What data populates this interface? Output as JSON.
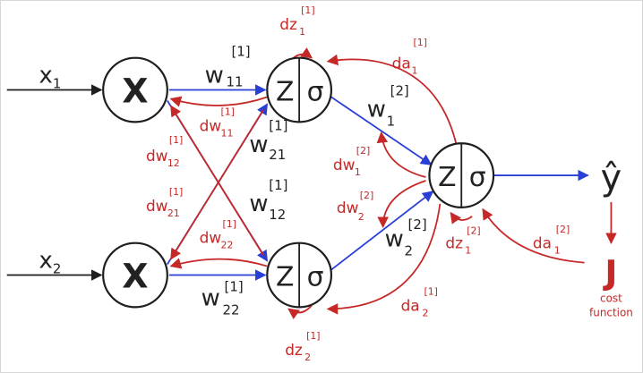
{
  "colors": {
    "forward": "#2a3fd6",
    "backward": "#c62828",
    "ink": "#222222"
  },
  "inputs": {
    "x1": "x",
    "x1_sub": "1",
    "x2": "x",
    "x2_sub": "2"
  },
  "nodes": {
    "multiply_symbol": "X",
    "z": "Z",
    "sigma": "σ"
  },
  "weights": {
    "w11": {
      "base": "w",
      "sup": "[1]",
      "sub": "11"
    },
    "w21": {
      "base": "w",
      "sup": "[1]",
      "sub": "21"
    },
    "w12": {
      "base": "w",
      "sup": "[1]",
      "sub": "12"
    },
    "w22": {
      "base": "w",
      "sup": "[1]",
      "sub": "22"
    },
    "w1_2": {
      "base": "w",
      "sup": "[2]",
      "sub": "1"
    },
    "w2_2": {
      "base": "w",
      "sup": "[2]",
      "sub": "2"
    }
  },
  "gradients": {
    "dw11": {
      "base": "dw",
      "sup": "[1]",
      "sub": "11"
    },
    "dw12": {
      "base": "dw",
      "sup": "[1]",
      "sub": "12"
    },
    "dw21": {
      "base": "dw",
      "sup": "[1]",
      "sub": "21"
    },
    "dw22": {
      "base": "dw",
      "sup": "[1]",
      "sub": "22"
    },
    "dw1_2": {
      "base": "dw",
      "sup": "[2]",
      "sub": "1"
    },
    "dw2_2": {
      "base": "dw",
      "sup": "[2]",
      "sub": "2"
    },
    "dz1_1": {
      "base": "dz",
      "sup": "[1]",
      "sub": "1"
    },
    "dz2_1": {
      "base": "dz",
      "sup": "[1]",
      "sub": "2"
    },
    "dz1_2": {
      "base": "dz",
      "sup": "[2]",
      "sub": "1"
    },
    "da1_1": {
      "base": "da",
      "sup": "[1]",
      "sub": "1"
    },
    "da2_1": {
      "base": "da",
      "sup": "[1]",
      "sub": "2"
    },
    "da1_2": {
      "base": "da",
      "sup": "[2]",
      "sub": "1"
    }
  },
  "output": {
    "yhat": "ŷ"
  },
  "cost": {
    "symbol": "J",
    "line1": "cost",
    "line2": "function"
  }
}
